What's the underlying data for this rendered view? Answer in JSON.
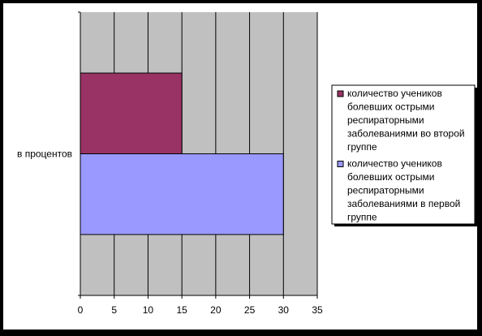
{
  "chart_data": {
    "type": "bar",
    "orientation": "horizontal",
    "categories": [
      "в процентов"
    ],
    "series": [
      {
        "name": "количество учеников болевших острыми респираторными заболеваниями в первой группе",
        "values": [
          30
        ],
        "color": "#9999FF"
      },
      {
        "name": "количество учеников болевших острыми респираторными заболеваниями во второй группе",
        "values": [
          15
        ],
        "color": "#993366"
      }
    ],
    "xlim": [
      0,
      35
    ],
    "xticks": [
      0,
      5,
      10,
      15,
      20,
      25,
      30,
      35
    ],
    "grid": true,
    "plot_background": "#C0C0C0",
    "legend_position": "right",
    "legend_order": [
      1,
      0
    ],
    "legend_lines": [
      [
        "количество учеников",
        "болевших острыми",
        "респираторными",
        "заболеваниями во второй",
        "группе"
      ],
      [
        "количество учеников",
        "болевших острыми",
        "респираторными",
        "заболеваниями в первой",
        "группе"
      ]
    ]
  }
}
